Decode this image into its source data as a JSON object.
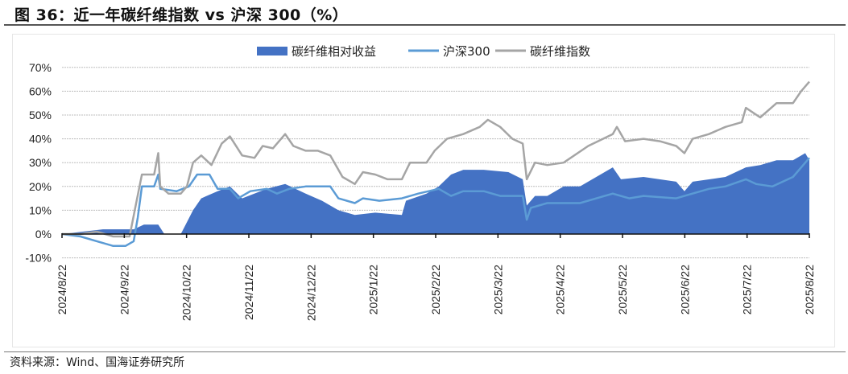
{
  "title": "图 36：近一年碳纤维指数 vs 沪深 300（%）",
  "source": "资料来源：Wind、国海证券研究所",
  "chart_data": {
    "type": "line",
    "title": "近一年碳纤维指数 vs 沪深 300（%）",
    "x_unit": "days since 2024/8/22",
    "ylim": [
      -10,
      70
    ],
    "yticks": [
      "-10%",
      "0%",
      "10%",
      "20%",
      "30%",
      "40%",
      "50%",
      "60%",
      "70%"
    ],
    "ytick_values": [
      -10,
      0,
      10,
      20,
      30,
      40,
      50,
      60,
      70
    ],
    "xtick_labels": [
      "2024/8/22",
      "2024/9/22",
      "2024/10/22",
      "2024/11/22",
      "2024/12/22",
      "2025/1/22",
      "2025/2/22",
      "2025/3/22",
      "2025/4/22",
      "2025/5/22",
      "2025/6/22",
      "2025/7/22",
      "2025/8/22"
    ],
    "grid": true,
    "legend_position": "top-center",
    "colors": {
      "relative": "#4472c4",
      "hs300": "#5b9bd5",
      "index": "#a5a5a5"
    },
    "series": [
      {
        "name": "碳纤维相对收益",
        "kind": "area",
        "x": [
          0,
          20,
          35,
          40,
          47,
          50,
          58,
          61,
          64,
          68,
          76,
          82,
          88,
          100,
          109,
          119,
          127,
          135,
          143,
          153,
          166,
          168,
          178,
          184,
          190,
          196,
          206,
          218,
          225,
          227,
          231,
          237,
          245,
          253,
          269,
          273,
          284,
          300,
          304,
          308,
          324,
          334,
          341,
          349,
          357,
          363,
          365
        ],
        "y": [
          0,
          2,
          2,
          4,
          4,
          0,
          0,
          5,
          10,
          15,
          18,
          20,
          15,
          19,
          21,
          17,
          14,
          10,
          8,
          9,
          8,
          14,
          17,
          20,
          25,
          27,
          27,
          26,
          23,
          12,
          16,
          16,
          20,
          20,
          28,
          23,
          24,
          22,
          18,
          22,
          24,
          28,
          29,
          31,
          31,
          34,
          31
        ]
      },
      {
        "name": "沪深300",
        "kind": "line",
        "x": [
          0,
          9,
          17,
          25,
          31,
          35,
          37,
          39,
          45,
          47,
          48,
          56,
          62,
          66,
          72,
          76,
          82,
          86,
          92,
          100,
          105,
          111,
          119,
          131,
          135,
          143,
          147,
          155,
          166,
          174,
          184,
          190,
          196,
          206,
          214,
          225,
          227,
          229,
          237,
          245,
          253,
          261,
          269,
          277,
          284,
          300,
          304,
          316,
          324,
          334,
          339,
          347,
          357,
          365
        ],
        "y": [
          0,
          -1,
          -3,
          -5,
          -5,
          -3,
          7,
          20,
          20,
          25,
          19,
          18,
          20,
          25,
          25,
          19,
          19,
          15,
          18,
          19,
          17,
          19,
          20,
          20,
          15,
          13,
          15,
          14,
          15,
          17,
          19,
          16,
          18,
          18,
          16,
          16,
          6,
          11,
          13,
          13,
          13,
          15,
          17,
          15,
          16,
          15,
          16,
          19,
          20,
          23,
          21,
          20,
          24,
          32
        ]
      },
      {
        "name": "碳纤维指数",
        "kind": "line",
        "x": [
          0,
          9,
          17,
          25,
          33,
          36,
          39,
          45,
          47,
          48,
          52,
          58,
          61,
          64,
          68,
          73,
          78,
          82,
          88,
          94,
          98,
          103,
          109,
          113,
          119,
          125,
          131,
          137,
          143,
          147,
          153,
          159,
          166,
          170,
          178,
          182,
          188,
          196,
          204,
          208,
          214,
          220,
          225,
          227,
          231,
          237,
          245,
          257,
          269,
          271,
          275,
          284,
          292,
          300,
          304,
          308,
          316,
          324,
          332,
          334,
          341,
          349,
          357,
          361,
          365
        ],
        "y": [
          0,
          0,
          1,
          -1,
          -1,
          12,
          25,
          25,
          34,
          20,
          17,
          17,
          20,
          30,
          33,
          29,
          38,
          41,
          33,
          32,
          37,
          36,
          42,
          37,
          35,
          35,
          33,
          24,
          21,
          26,
          25,
          23,
          23,
          30,
          30,
          35,
          40,
          42,
          45,
          48,
          45,
          40,
          38,
          23,
          30,
          29,
          30,
          37,
          42,
          45,
          39,
          40,
          39,
          37,
          34,
          40,
          42,
          45,
          47,
          53,
          49,
          55,
          55,
          60,
          64
        ]
      }
    ]
  }
}
